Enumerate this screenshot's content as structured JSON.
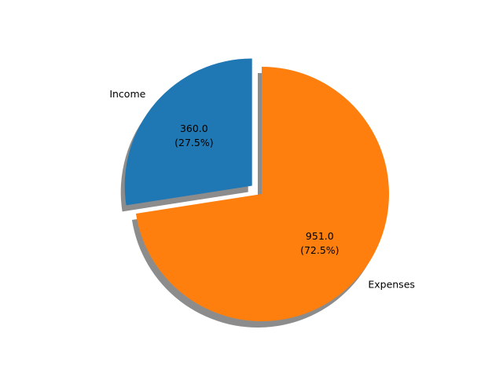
{
  "chart_data": {
    "type": "pie",
    "categories": [
      "Income",
      "Expenses"
    ],
    "values": [
      360.0,
      951.0
    ],
    "percent_labels": [
      "360.0\n(27.5%)",
      "951.0\n(72.5%)"
    ],
    "colors": [
      "#1f77b4",
      "#ff7f0e"
    ],
    "shadow": true,
    "explode": [
      0.1,
      0
    ],
    "start_angle_deg": 90,
    "direction": "counterclockwise"
  }
}
